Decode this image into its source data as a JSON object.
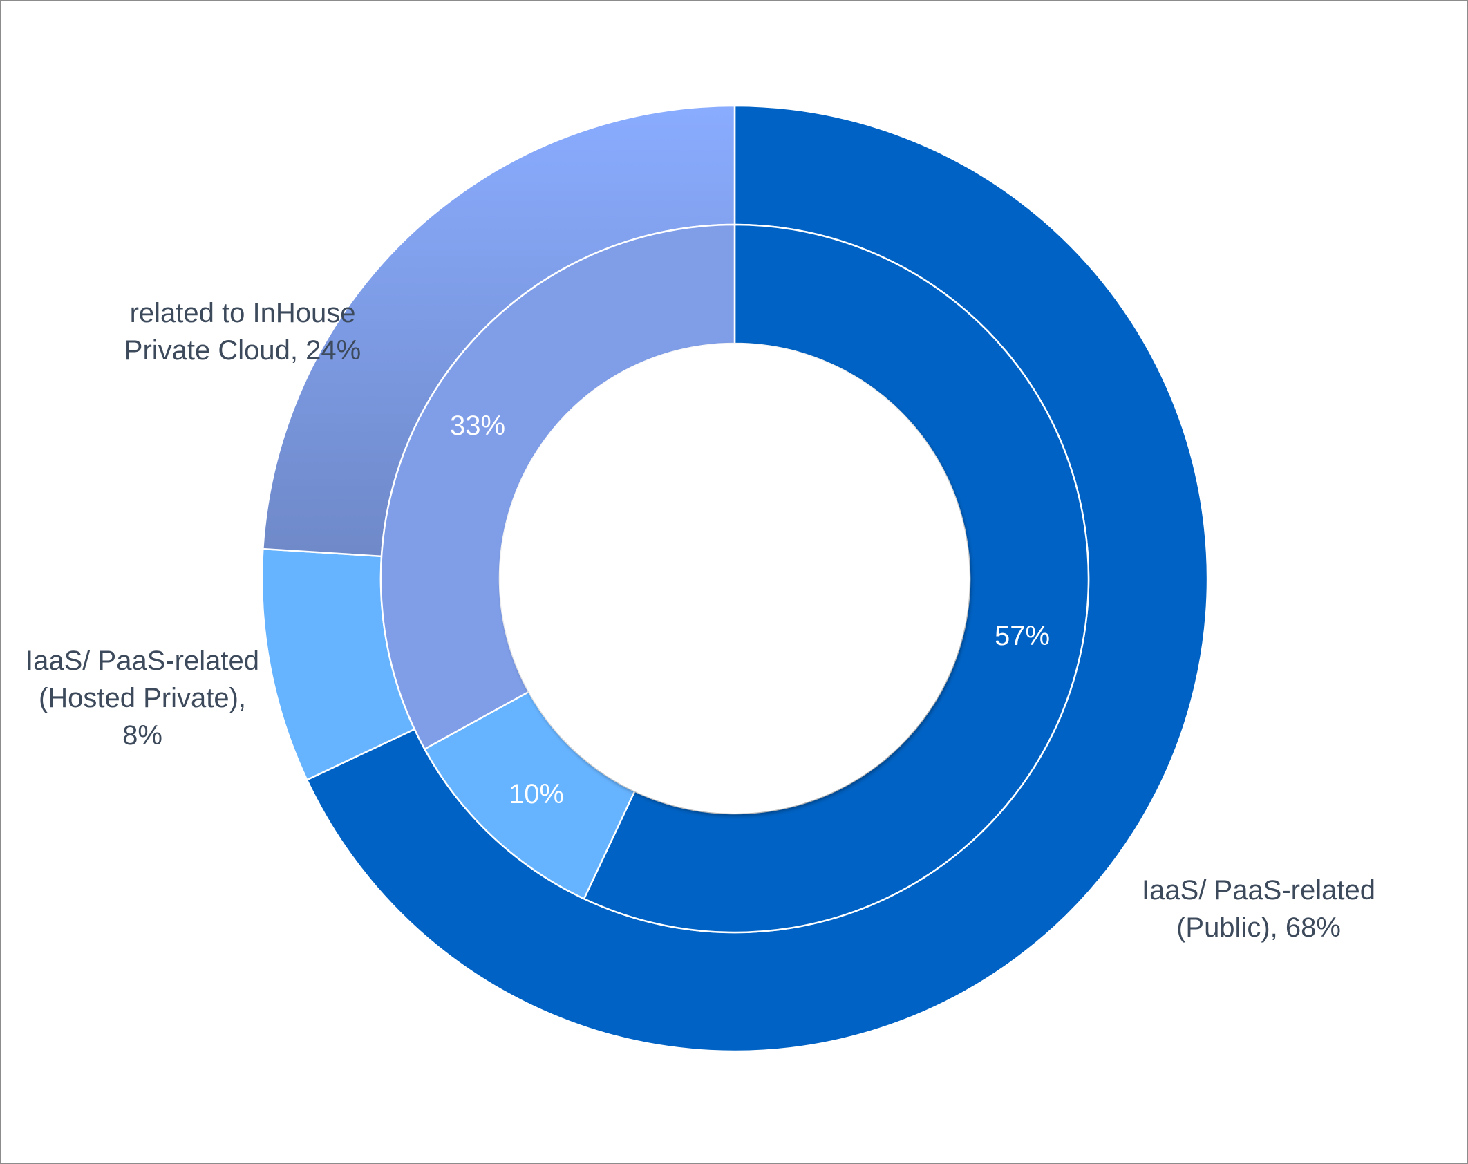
{
  "chart_data": {
    "type": "donut",
    "title": "",
    "categories": [
      "IaaS/ PaaS-related (Public)",
      "IaaS/ PaaS-related (Hosted Private)",
      "related to InHouse Private Cloud"
    ],
    "series": [
      {
        "ring": "outer",
        "values": [
          68,
          8,
          24
        ],
        "labels": [
          [
            "IaaS/ PaaS-related",
            "(Public), 68%"
          ],
          [
            "IaaS/ PaaS-related",
            "(Hosted Private),",
            "8%"
          ],
          [
            "related to InHouse",
            "Private Cloud, 24%"
          ]
        ]
      },
      {
        "ring": "inner",
        "values": [
          57,
          10,
          33
        ],
        "labels": [
          [
            "57%"
          ],
          [
            "10%"
          ],
          [
            "33%"
          ]
        ]
      }
    ],
    "colors": {
      "outer": [
        "#0062c4",
        "#66b3ff",
        "#8aacff"
      ],
      "outer_gradient_bottom": "#6f89c8",
      "inner": [
        "#0062c4",
        "#66b3ff",
        "#809ee8"
      ],
      "separator": "#ffffff"
    },
    "legend": "none",
    "grid": false
  }
}
